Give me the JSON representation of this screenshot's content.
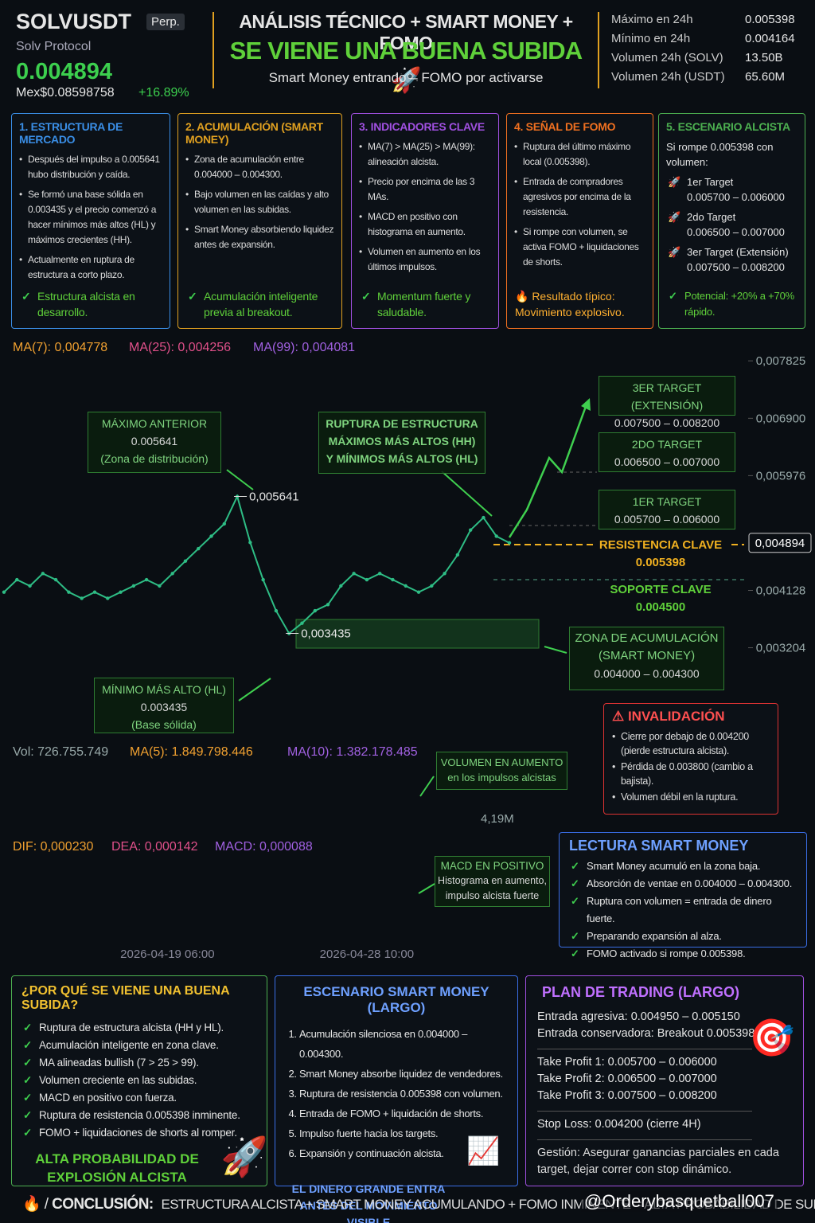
{
  "header": {
    "symbol": "SOLVUSDT",
    "tag": "Perp.",
    "name": "Solv Protocol",
    "price": "0.004894",
    "mex_price": "Mex$0.08598758",
    "change": "+16.89%",
    "title": "ANÁLISIS TÉCNICO + SMART MONEY + FOMO",
    "headline": "SE VIENE UNA BUENA SUBIDA 🚀",
    "subtitle": "Smart Money entrando – FOMO por activarse",
    "stats": [
      [
        "Máximo en 24h",
        "0.005398"
      ],
      [
        "Mínimo en 24h",
        "0.004164"
      ],
      [
        "Volumen 24h (SOLV)",
        "13.50B"
      ],
      [
        "Volumen 24h (USDT)",
        "65.60M"
      ]
    ]
  },
  "top_cards": [
    {
      "title": "1. ESTRUCTURA DE MERCADO",
      "items": [
        "Después del impulso a 0.005641 hubo distribución y caída.",
        "Se formó una base sólida en 0.003435 y el precio comenzó a hacer mínimos más altos (HL) y máximos crecientes (HH).",
        "Actualmente en ruptura de estructura a corto plazo."
      ],
      "conclusion": "Estructura alcista en desarrollo."
    },
    {
      "title": "2. ACUMULACIÓN (SMART MONEY)",
      "items": [
        "Zona de acumulación entre 0.004000 – 0.004300.",
        "Bajo volumen en las caídas y alto volumen en las subidas.",
        "Smart Money absorbiendo liquidez antes de expansión."
      ],
      "conclusion": "Acumulación inteligente previa al breakout."
    },
    {
      "title": "3. INDICADORES CLAVE",
      "items": [
        "MA(7) > MA(25) > MA(99): alineación alcista.",
        "Precio por encima de las 3 MAs.",
        "MACD en positivo con histograma en aumento.",
        "Volumen en aumento en los últimos impulsos."
      ],
      "conclusion": "Momentum fuerte y saludable."
    },
    {
      "title": "4. SEÑAL DE FOMO",
      "items": [
        "Ruptura del último máximo local (0.005398).",
        "Entrada de compradores agresivos por encima de la resistencia.",
        "Si rompe con volumen, se activa FOMO + liquidaciones de shorts."
      ],
      "conclusion": "🔥 Resultado típico: Movimiento explosivo."
    },
    {
      "title": "5. ESCENARIO ALCISTA",
      "intro": "Si rompe 0.005398 con volumen:",
      "targets": [
        {
          "label": "1er Target",
          "range": "0.005700 – 0.006000"
        },
        {
          "label": "2do Target",
          "range": "0.006500 – 0.007000"
        },
        {
          "label": "3er Target (Extensión)",
          "range": "0.007500 – 0.008200"
        }
      ],
      "conclusion": "Potencial: +20% a +70% rápido."
    }
  ],
  "ma_legend": [
    "MA(7): 0,004778",
    "MA(25): 0,004256",
    "MA(99): 0,004081"
  ],
  "chart_data": {
    "type": "line",
    "color": "#2ebd85",
    "categories": [
      null,
      null,
      null,
      null,
      null,
      null,
      null,
      null,
      null,
      null,
      null,
      null,
      "2026-04-19 06:00",
      null,
      null,
      null,
      null,
      null,
      null,
      null,
      null,
      null,
      null,
      null,
      null,
      null,
      null,
      null,
      "2026-04-28 10:00",
      null,
      null,
      null,
      null,
      null,
      null,
      null,
      null,
      null,
      null,
      null
    ],
    "values": [
      0.0041,
      0.0043,
      0.0042,
      0.0044,
      0.0043,
      0.0041,
      0.004,
      0.0041,
      0.004,
      0.0041,
      0.0042,
      0.0043,
      0.0042,
      0.0044,
      0.0046,
      0.0048,
      0.005,
      0.0052,
      0.005641,
      0.0049,
      0.0043,
      0.0038,
      0.003435,
      0.0036,
      0.0038,
      0.0039,
      0.0042,
      0.0044,
      0.0043,
      0.0044,
      0.0043,
      0.0042,
      0.0041,
      0.0042,
      0.0044,
      0.0047,
      0.0051,
      0.0053,
      0.005,
      0.004894
    ],
    "value_labels": [
      null,
      null,
      null,
      null,
      null,
      null,
      null,
      null,
      null,
      null,
      null,
      null,
      null,
      null,
      null,
      null,
      null,
      null,
      "0,005641",
      null,
      null,
      null,
      "0,003435",
      null,
      null,
      null,
      null,
      null,
      null,
      null,
      null,
      null,
      null,
      null,
      null,
      null,
      null,
      null,
      null,
      null
    ],
    "ylim": [
      0.00248,
      0.00793
    ],
    "yticks": [
      {
        "value": 0.007825,
        "label": "0,007825"
      },
      {
        "value": 0.0069,
        "label": "0,006900"
      },
      {
        "value": 0.005976,
        "label": "0,005976"
      },
      {
        "value": 0.004128,
        "label": "0,004128"
      },
      {
        "value": 0.003204,
        "label": "0,003204"
      }
    ],
    "price_tag": {
      "value": 0.004894,
      "label": "0,004894"
    },
    "grid": false
  },
  "annotations": {
    "prev_high": [
      "MÁXIMO ANTERIOR",
      "0.005641",
      "(Zona de distribución)"
    ],
    "breakout": [
      "RUPTURA DE ESTRUCTURA",
      "MÁXIMOS MÁS ALTOS (HH)",
      "Y MÍNIMOS MÁS ALTOS (HL)"
    ],
    "target3": [
      "3ER TARGET (EXTENSIÓN)",
      "0.007500 – 0.008200"
    ],
    "target2": [
      "2DO TARGET",
      "0.006500 – 0.007000"
    ],
    "target1": [
      "1ER TARGET",
      "0.005700 – 0.006000"
    ],
    "resistance": [
      "RESISTENCIA CLAVE",
      "0.005398"
    ],
    "support": [
      "SOPORTE CLAVE",
      "0.004500"
    ],
    "accumulation": [
      "ZONA DE ACUMULACIÓN",
      "(SMART MONEY)",
      "0.004000 – 0.004300"
    ],
    "higher_low": [
      "MÍNIMO MÁS ALTO (HL)",
      "0.003435",
      "(Base sólida)"
    ]
  },
  "invalidation": {
    "title": "⚠ INVALIDACIÓN",
    "items": [
      "Cierre por debajo de 0.004200 (pierde estructura alcista).",
      "Pérdida de 0.003800 (cambio a bajista).",
      "Volumen débil en la ruptura."
    ]
  },
  "volume": {
    "legend": [
      "Vol: 726.755.749",
      "MA(5): 1.849.798.446",
      "MA(10): 1.382.178.485"
    ],
    "scale_label": "4,19M",
    "note": [
      "VOLUMEN EN AUMENTO",
      "en los impulsos alcistas"
    ]
  },
  "macd": {
    "legend": [
      "DIF: 0,000230",
      "DEA: 0,000142",
      "MACD: 0,000088"
    ],
    "note": [
      "MACD EN POSITIVO",
      "Histograma en aumento,",
      "impulso alcista fuerte"
    ]
  },
  "smart_money_reading": {
    "title": "LECTURA SMART MONEY",
    "items": [
      "Smart Money acumuló en la zona baja.",
      "Absorción de ventae en 0.004000 – 0.004300.",
      "Ruptura con volumen = entrada de dinero fuerte.",
      "Preparando expansión al alza.",
      "FOMO activado si rompe 0.005398."
    ]
  },
  "why": {
    "title": "¿POR QUÉ SE VIENE UNA BUENA SUBIDA?",
    "items": [
      "Ruptura de estructura alcista (HH y HL).",
      "Acumulación inteligente en zona clave.",
      "MA alineadas bullish (7 > 25 > 99).",
      "Volumen creciente en las subidas.",
      "MACD en positivo con fuerza.",
      "Ruptura de resistencia 0.005398 inminente.",
      "FOMO + liquidaciones de shorts al romper."
    ],
    "footer": "ALTA PROBABILIDAD DE EXPLOSIÓN ALCISTA"
  },
  "scenario": {
    "title": "ESCENARIO SMART MONEY (LARGO)",
    "items": [
      "Acumulación silenciosa en 0.004000 – 0.004300.",
      "Smart Money absorbe liquidez de vendedores.",
      "Ruptura de resistencia 0.005398 con volumen.",
      "Entrada de FOMO + liquidación de shorts.",
      "Impulso fuerte hacia los targets.",
      "Expansión y continuación alcista."
    ],
    "footer": "EL DINERO GRANDE ENTRA ANTES DEL MOVIMIENTO VISIBLE"
  },
  "plan": {
    "title": "PLAN DE TRADING (LARGO)",
    "entries": [
      [
        "Entrada agresiva:",
        "0.004950 – 0.005150"
      ],
      [
        "Entrada conservadora:",
        "Breakout 0.005398+"
      ]
    ],
    "take_profits": [
      [
        "Take Profit 1:",
        "0.005700 – 0.006000"
      ],
      [
        "Take Profit 2:",
        "0.006500 – 0.007000"
      ],
      [
        "Take Profit 3:",
        "0.007500 – 0.008200"
      ]
    ],
    "stop": [
      "Stop Loss:",
      "0.004200 (cierre 4H)"
    ],
    "management": [
      "Gestión:",
      "Asegurar ganancias parciales en cada target, dejar correr con stop dinámico."
    ]
  },
  "conclusion": {
    "label": "CONCLUSIÓN:",
    "text": "ESTRUCTURA ALCISTA + SMART MONEY ACUMULANDO + FOMO INMINENTE = ALTA PROBABILIDAD DE SUBIDA EXPLOSIVA"
  },
  "watermark": "@Orderybasquetball007"
}
